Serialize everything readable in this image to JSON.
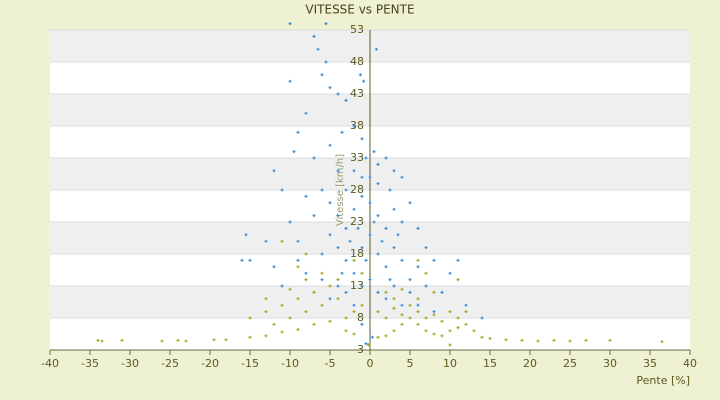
{
  "chart_data": {
    "type": "scatter",
    "title": "VITESSE vs PENTE",
    "x_label": "Pente [%]",
    "y_label": "Vitesse [km/h]",
    "xlim": [
      -40,
      40
    ],
    "xticks": [
      -40,
      -35,
      -30,
      -25,
      -20,
      -15,
      -10,
      -5,
      0,
      5,
      10,
      15,
      20,
      25,
      30,
      35,
      40
    ],
    "ylim": [
      3,
      53
    ],
    "yticks": [
      3,
      8,
      13,
      18,
      23,
      28,
      33,
      38,
      43,
      48,
      53
    ],
    "grid": true,
    "series": [
      {
        "color": "#3d8fd8",
        "x": [
          -10,
          -5.5,
          -7,
          -6.5,
          -5.5,
          -6,
          -10,
          -4,
          -3,
          -1.2,
          -0.8,
          0.8,
          -5,
          -8,
          -9,
          -3.5,
          -12,
          -9.5,
          -7,
          -5,
          -2,
          -1,
          0.5,
          2,
          3,
          4,
          -4,
          -2,
          -1,
          1,
          2.5,
          -3,
          -6,
          -8,
          -11,
          -15.5,
          -15,
          -13,
          -10,
          -9,
          -7,
          -5,
          -4,
          -3,
          -2,
          -1,
          0,
          1,
          2,
          3,
          4,
          5,
          6,
          7,
          8,
          10,
          11,
          -6,
          -5,
          -4,
          -3,
          -2,
          -1,
          0,
          1,
          2,
          3,
          4,
          5,
          6,
          7,
          -8,
          -7,
          -6,
          -5,
          -4,
          -3,
          -2,
          -1,
          0,
          1,
          2,
          3,
          4,
          5,
          9,
          -1.5,
          0.5,
          1.5,
          -0.5,
          2.5,
          -2.5,
          3.5,
          -3.5,
          0,
          1,
          -0.5,
          12,
          14,
          -11,
          -12,
          -0.5,
          0.3,
          -1,
          6,
          8,
          -9,
          -16
        ],
        "values": [
          54,
          54,
          52,
          50,
          48,
          46,
          45,
          43,
          42,
          46,
          45,
          50,
          44,
          40,
          37,
          37,
          31,
          34,
          33,
          35,
          38,
          36,
          34,
          33,
          31,
          30,
          31,
          31,
          30,
          29,
          28,
          28,
          28,
          27,
          28,
          21,
          17,
          20,
          23,
          20,
          24,
          26,
          24,
          22,
          25,
          27,
          26,
          24,
          22,
          25,
          23,
          26,
          22,
          19,
          17,
          15,
          17,
          18,
          21,
          19,
          17,
          15,
          19,
          21,
          18,
          16,
          19,
          17,
          14,
          16,
          13,
          15,
          12,
          14,
          11,
          13,
          12,
          10,
          13,
          14,
          12,
          11,
          13,
          10,
          12,
          12,
          22,
          23,
          20,
          17,
          14,
          20,
          21,
          15,
          30,
          32,
          33,
          10,
          8,
          13,
          16,
          4,
          5,
          7,
          10,
          9,
          17,
          17
        ]
      },
      {
        "color": "#a8a820",
        "x": [
          -34,
          -33.5,
          -31,
          -26,
          -24,
          -23,
          -19.5,
          -18,
          -15,
          -13,
          -11,
          -9,
          -7,
          -5,
          -3,
          -2,
          -1,
          -15,
          -13,
          -11,
          -9,
          -7,
          -5,
          -4,
          -13,
          -10,
          -8,
          -6,
          -12,
          -10,
          -8,
          -6,
          -4,
          -3,
          -2,
          1,
          2,
          3,
          4,
          5,
          6,
          7,
          8,
          9,
          10,
          11,
          12,
          13,
          14,
          15,
          17,
          19,
          21,
          23,
          25,
          27,
          30,
          36.5,
          1,
          2,
          3,
          4,
          5,
          6,
          7,
          8,
          9,
          10,
          11,
          12,
          2,
          3,
          4,
          6,
          8,
          -1,
          -2,
          -9,
          -8,
          -11,
          6,
          7,
          11,
          10,
          -0.2
        ],
        "values": [
          4.5,
          4.4,
          4.5,
          4.4,
          4.5,
          4.4,
          4.6,
          4.6,
          5,
          5.2,
          5.8,
          6.2,
          7,
          7.5,
          8,
          9,
          10,
          8,
          9,
          10,
          11,
          12,
          13,
          14,
          11,
          12.5,
          14,
          15,
          7,
          8,
          9,
          10,
          11,
          6,
          5.5,
          5,
          5.2,
          6,
          7,
          8,
          7,
          6,
          5.5,
          5.2,
          6,
          6.5,
          7,
          6,
          5,
          4.8,
          4.6,
          4.5,
          4.4,
          4.5,
          4.4,
          4.5,
          4.5,
          4.3,
          9,
          8,
          9.5,
          8.5,
          10,
          9,
          8,
          8.5,
          7.5,
          9,
          8,
          9,
          12,
          11,
          12.5,
          11,
          12,
          15,
          17,
          16,
          18,
          20,
          17,
          15,
          14,
          3.8,
          3.8
        ]
      }
    ]
  }
}
